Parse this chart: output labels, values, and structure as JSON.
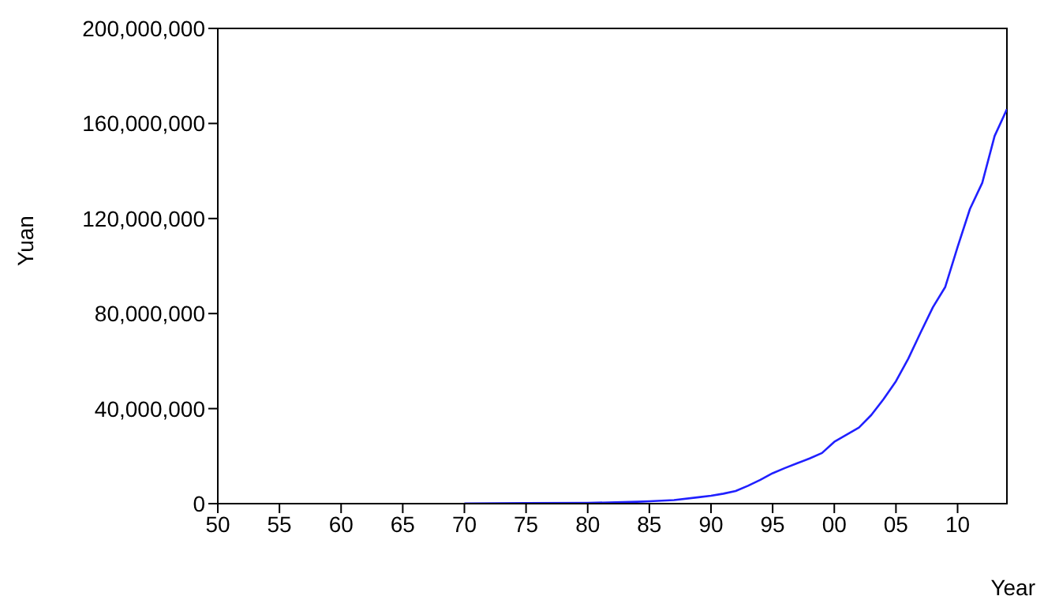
{
  "chart_data": {
    "type": "line",
    "xlabel": "Year",
    "ylabel": "Yuan",
    "x": [
      1970,
      1975,
      1980,
      1984,
      1985,
      1987,
      1989,
      1990,
      1991,
      1992,
      1993,
      1994,
      1995,
      1996,
      1997,
      1998,
      1999,
      2000,
      2001,
      2002,
      2003,
      2004,
      2005,
      2006,
      2007,
      2008,
      2009,
      2010,
      2011,
      2012,
      2013,
      2014
    ],
    "series": [
      {
        "color": "#2020ff",
        "values": [
          100000,
          200000,
          300000,
          800000,
          1000000,
          1500000,
          2700000,
          3300000,
          4200000,
          5300000,
          7500000,
          10000000,
          12800000,
          15000000,
          17000000,
          19000000,
          21300000,
          26000000,
          29000000,
          32000000,
          37300000,
          44000000,
          51500000,
          61000000,
          72000000,
          82700000,
          91200000,
          108000000,
          124000000,
          135000000,
          154700000,
          166000000
        ]
      }
    ],
    "xlim": [
      1950,
      2014
    ],
    "xticks": [
      {
        "value": 1950,
        "label": "50"
      },
      {
        "value": 1955,
        "label": "55"
      },
      {
        "value": 1960,
        "label": "60"
      },
      {
        "value": 1965,
        "label": "65"
      },
      {
        "value": 1970,
        "label": "70"
      },
      {
        "value": 1975,
        "label": "75"
      },
      {
        "value": 1980,
        "label": "80"
      },
      {
        "value": 1985,
        "label": "85"
      },
      {
        "value": 1990,
        "label": "90"
      },
      {
        "value": 1995,
        "label": "95"
      },
      {
        "value": 2000,
        "label": "00"
      },
      {
        "value": 2005,
        "label": "05"
      },
      {
        "value": 2010,
        "label": "10"
      }
    ],
    "ylim": [
      0,
      200000000
    ],
    "yticks": [
      {
        "value": 0,
        "label": "0"
      },
      {
        "value": 40000000,
        "label": "40,000,000"
      },
      {
        "value": 80000000,
        "label": "80,000,000"
      },
      {
        "value": 120000000,
        "label": "120,000,000"
      },
      {
        "value": 160000000,
        "label": "160,000,000"
      },
      {
        "value": 200000000,
        "label": "200,000,000"
      }
    ],
    "marker": "none",
    "line_style": "solid"
  }
}
